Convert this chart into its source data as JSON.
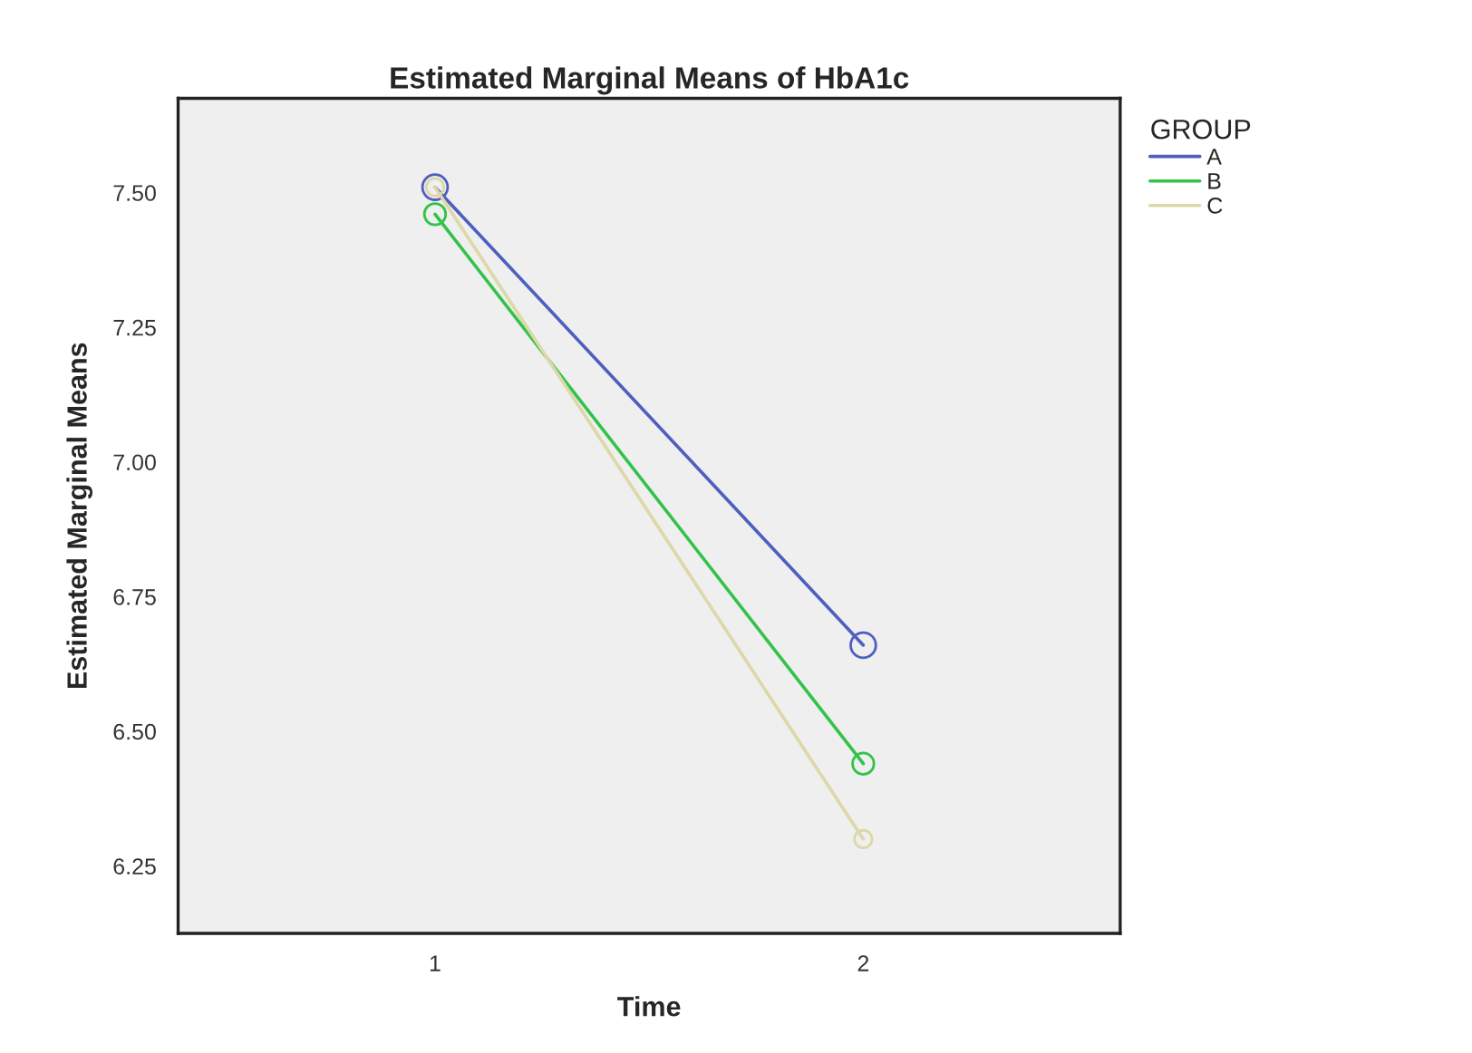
{
  "chart_data": {
    "type": "line",
    "title": "Estimated Marginal Means of HbA1c",
    "xlabel": "Time",
    "ylabel": "Estimated Marginal Means",
    "legend_title": "GROUP",
    "categories": [
      "1",
      "2"
    ],
    "series": [
      {
        "name": "A",
        "color": "#4e5fbf",
        "values": [
          7.51,
          6.66
        ]
      },
      {
        "name": "B",
        "color": "#33c24a",
        "values": [
          7.46,
          6.44
        ]
      },
      {
        "name": "C",
        "color": "#ddd8a8",
        "values": [
          7.51,
          6.3
        ]
      }
    ],
    "ylim": [
      6.125,
      7.675
    ],
    "yticks": [
      {
        "value": 6.25,
        "label": "6.25"
      },
      {
        "value": 6.5,
        "label": "6.50"
      },
      {
        "value": 6.75,
        "label": "6.75"
      },
      {
        "value": 7.0,
        "label": "7.00"
      },
      {
        "value": 7.25,
        "label": "7.25"
      },
      {
        "value": 7.5,
        "label": "7.50"
      }
    ],
    "marker": "circle",
    "legend": "top right",
    "grid": false
  }
}
